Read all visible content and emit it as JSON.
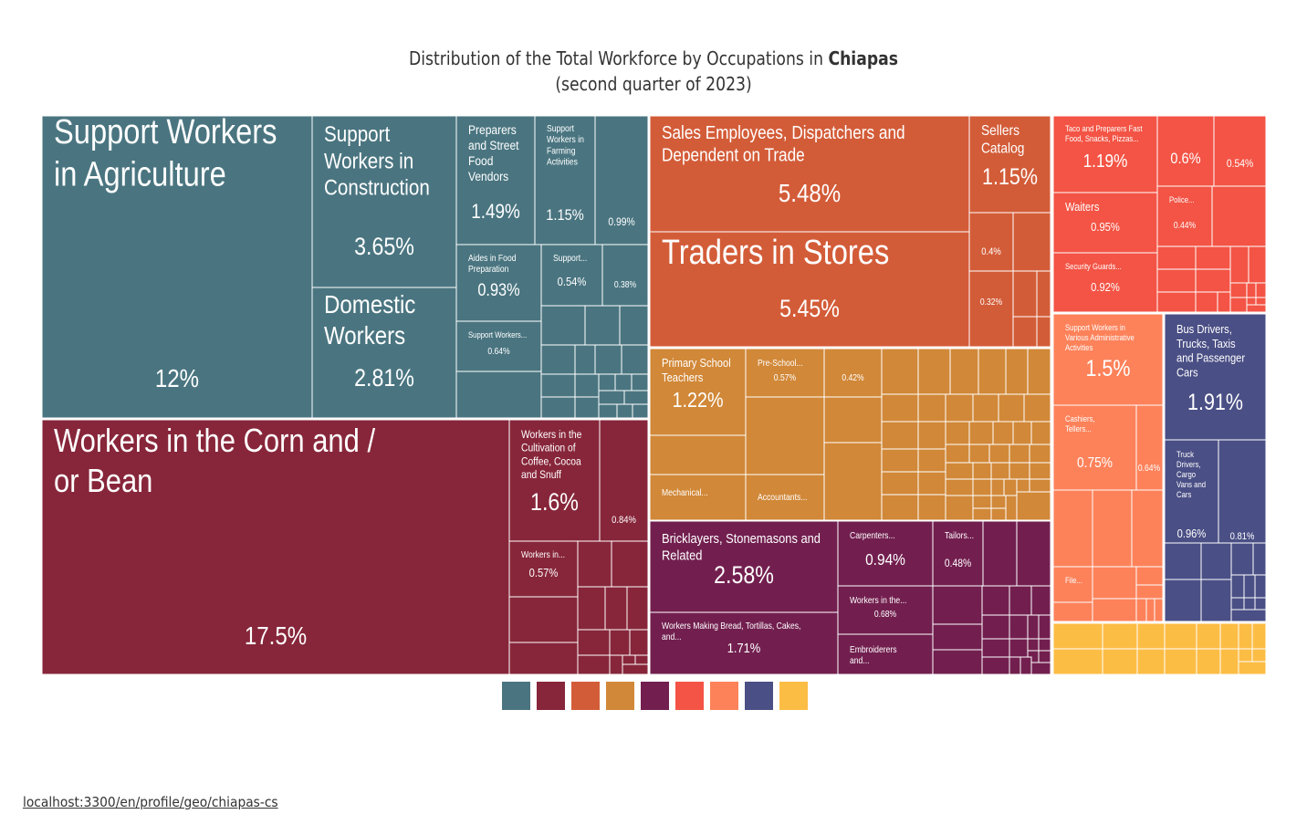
{
  "chart_data": {
    "type": "treemap",
    "title": "Distribution of the Total Workforce by Occupations in",
    "title_bold": "Chiapas",
    "subtitle": "(second quarter of 2023)",
    "groups": [
      {
        "name": "group-1",
        "color": "#4a7580",
        "total": 29.0
      },
      {
        "name": "group-2",
        "color": "#87263a",
        "total": 23.4
      },
      {
        "name": "group-3",
        "color": "#d35c38",
        "total": 14.3
      },
      {
        "name": "group-4",
        "color": "#d18838",
        "total": 9.8
      },
      {
        "name": "group-5",
        "color": "#721f4f",
        "total": 9.2
      },
      {
        "name": "group-6",
        "color": "#f35445",
        "total": 6.2
      },
      {
        "name": "group-7",
        "color": "#fd825a",
        "total": 5.0
      },
      {
        "name": "group-8",
        "color": "#4a4f85",
        "total": 4.8
      },
      {
        "name": "group-9",
        "color": "#fcbd45",
        "total": 2.5
      }
    ],
    "cells": [
      {
        "label": "Support Workers in Agriculture",
        "value": "12%",
        "group": 0
      },
      {
        "label": "Support Workers in Construction",
        "value": "3.65%",
        "group": 0
      },
      {
        "label": "Domestic Workers",
        "value": "2.81%",
        "group": 0
      },
      {
        "label": "Preparers and Street Food Vendors",
        "value": "1.49%",
        "group": 0
      },
      {
        "label": "Support Workers in Farming Activities",
        "value": "1.15%",
        "group": 0
      },
      {
        "label": "",
        "value": "0.99%",
        "group": 0
      },
      {
        "label": "Aides in Food Preparation",
        "value": "0.93%",
        "group": 0
      },
      {
        "label": "Support...",
        "value": "0.54%",
        "group": 0
      },
      {
        "label": "",
        "value": "0.38%",
        "group": 0
      },
      {
        "label": "Support Workers...",
        "value": "0.64%",
        "group": 0
      },
      {
        "label": "Workers in the Corn and / or Bean",
        "value": "17.5%",
        "group": 1
      },
      {
        "label": "Workers in the Cultivation of Coffee, Cocoa and Snuff",
        "value": "1.6%",
        "group": 1
      },
      {
        "label": "",
        "value": "0.84%",
        "group": 1
      },
      {
        "label": "Workers in...",
        "value": "0.57%",
        "group": 1
      },
      {
        "label": "Sales Employees, Dispatchers and Dependent on Trade",
        "value": "5.48%",
        "group": 2
      },
      {
        "label": "Traders in Stores",
        "value": "5.45%",
        "group": 2
      },
      {
        "label": "Sellers Catalog",
        "value": "1.15%",
        "group": 2
      },
      {
        "label": "",
        "value": "0.4%",
        "group": 2
      },
      {
        "label": "",
        "value": "0.32%",
        "group": 2
      },
      {
        "label": "Primary School Teachers",
        "value": "1.22%",
        "group": 3
      },
      {
        "label": "Pre-School...",
        "value": "0.57%",
        "group": 3
      },
      {
        "label": "",
        "value": "0.42%",
        "group": 3
      },
      {
        "label": "Mechanical...",
        "value": "",
        "group": 3
      },
      {
        "label": "Accountants...",
        "value": "",
        "group": 3
      },
      {
        "label": "Bricklayers, Stonemasons and Related",
        "value": "2.58%",
        "group": 4
      },
      {
        "label": "Carpenters...",
        "value": "0.94%",
        "group": 4
      },
      {
        "label": "Tailors...",
        "value": "0.48%",
        "group": 4
      },
      {
        "label": "Workers in the...",
        "value": "0.68%",
        "group": 4
      },
      {
        "label": "Workers Making Bread, Tortillas, Cakes, and...",
        "value": "1.71%",
        "group": 4
      },
      {
        "label": "Embroiderers and...",
        "value": "",
        "group": 4
      },
      {
        "label": "Taco and Preparers Fast Food, Snacks, Pizzas...",
        "value": "1.19%",
        "group": 5
      },
      {
        "label": "",
        "value": "0.6%",
        "group": 5
      },
      {
        "label": "",
        "value": "0.54%",
        "group": 5
      },
      {
        "label": "Waiters",
        "value": "0.95%",
        "group": 5
      },
      {
        "label": "Police...",
        "value": "0.44%",
        "group": 5
      },
      {
        "label": "Security Guards...",
        "value": "0.92%",
        "group": 5
      },
      {
        "label": "Support Workers in Various Administrative Activities",
        "value": "1.5%",
        "group": 6
      },
      {
        "label": "Cashiers, Tellers...",
        "value": "0.75%",
        "group": 6
      },
      {
        "label": "",
        "value": "0.64%",
        "group": 6
      },
      {
        "label": "File...",
        "value": "",
        "group": 6
      },
      {
        "label": "Bus Drivers, Trucks, Taxis and Passenger Cars",
        "value": "1.91%",
        "group": 7
      },
      {
        "label": "Truck Drivers, Cargo Vans and Cars",
        "value": "0.96%",
        "group": 7
      },
      {
        "label": "",
        "value": "0.81%",
        "group": 7
      }
    ]
  },
  "footer": {
    "url": "localhost:3300/en/profile/geo/chiapas-cs"
  }
}
